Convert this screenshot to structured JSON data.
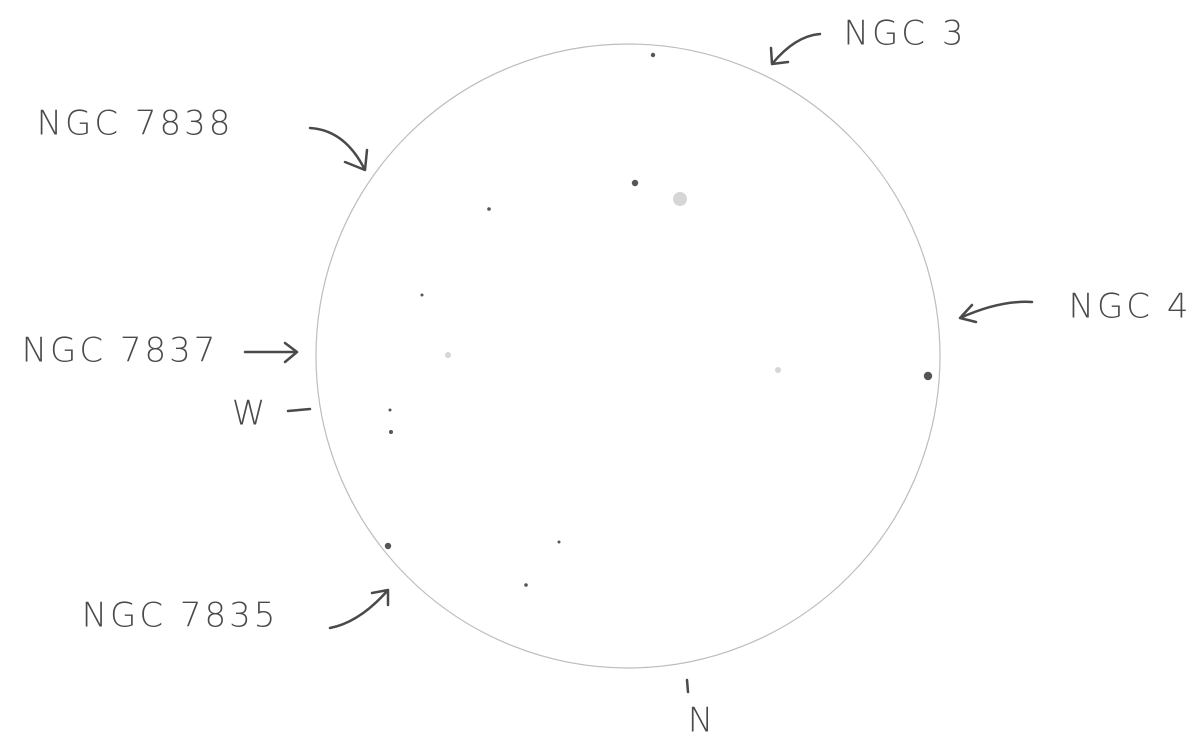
{
  "labels": {
    "ngc3": "NGC 3",
    "ngc7838": "NGC 7838",
    "ngc4": "NGC 4",
    "ngc7837": "NGC 7837",
    "west": "W",
    "ngc7835": "NGC 7835",
    "north": "N"
  }
}
